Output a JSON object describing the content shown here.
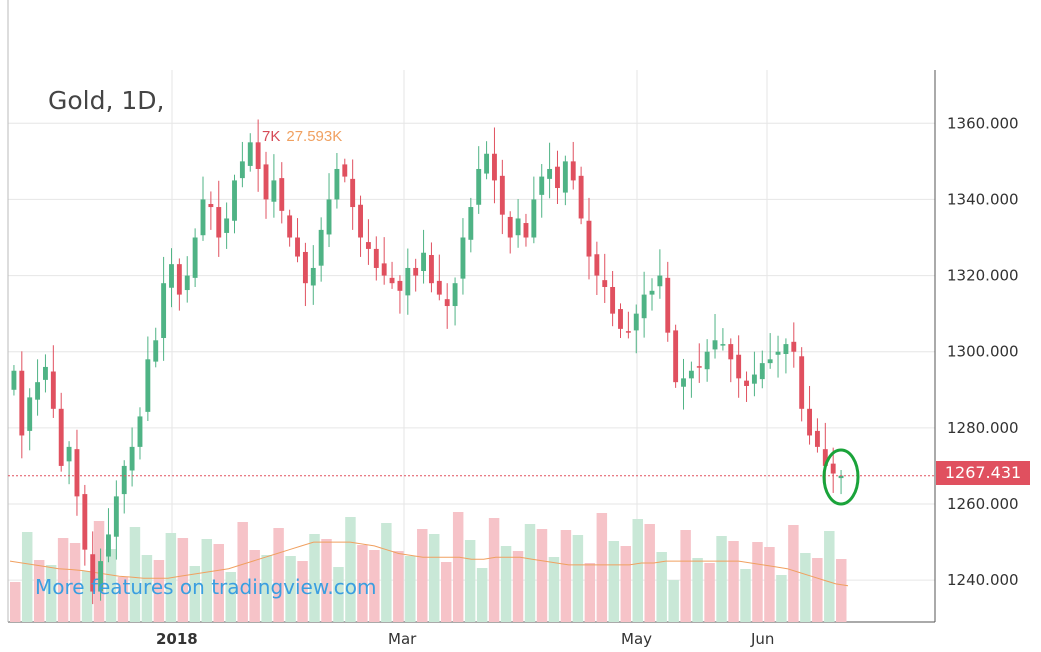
{
  "header": {
    "title": "Gold, 1D,",
    "volume_label_a": "7K",
    "volume_label_b": "27.593K"
  },
  "promo": {
    "text": "More features on tradingview.com"
  },
  "last_price": {
    "label": "1267.431",
    "value": 1267.431,
    "color": "#e0505f"
  },
  "colors": {
    "up": "#4fb385",
    "down": "#e0505f",
    "vol_up": "#c9e8d7",
    "vol_down": "#f6c3c8",
    "vol_ma": "#f0a060"
  },
  "chart_data": {
    "type": "candlestick",
    "y_ticks": [
      "1360.000",
      "1340.000",
      "1320.000",
      "1300.000",
      "1280.000",
      "1260.000",
      "1240.000"
    ],
    "y_tick_values": [
      1360,
      1340,
      1320,
      1300,
      1280,
      1260,
      1240
    ],
    "x_ticks": [
      "2018",
      "Mar",
      "May",
      "Jun"
    ],
    "ylim": [
      1229,
      1374
    ],
    "grid": true,
    "close_series": [
      1295,
      1278,
      1288,
      1292,
      1296,
      1285,
      1270,
      1275,
      1262,
      1248,
      1237,
      1245,
      1252,
      1262,
      1270,
      1275,
      1283,
      1298,
      1303,
      1318,
      1323,
      1315,
      1320,
      1330,
      1340,
      1338,
      1330,
      1335,
      1345,
      1350,
      1355,
      1348,
      1340,
      1345,
      1337,
      1330,
      1325,
      1318,
      1322,
      1332,
      1340,
      1348,
      1346,
      1338,
      1330,
      1327,
      1322,
      1320,
      1318,
      1316,
      1322,
      1320,
      1326,
      1318,
      1315,
      1312,
      1318,
      1330,
      1338,
      1348,
      1352,
      1345,
      1336,
      1330,
      1335,
      1330,
      1340,
      1346,
      1348,
      1343,
      1350,
      1345,
      1335,
      1325,
      1320,
      1317,
      1310,
      1306,
      1305,
      1310,
      1315,
      1316,
      1320,
      1305,
      1292,
      1293,
      1295,
      1296,
      1300,
      1303,
      1302,
      1298,
      1293,
      1291,
      1294,
      1297,
      1298,
      1300,
      1302,
      1300,
      1285,
      1278,
      1275,
      1270,
      1268,
      1267.431
    ],
    "volume_ma": [
      1245,
      1244.5,
      1244,
      1243.5,
      1243,
      1242.8,
      1242.5,
      1242,
      1241.5,
      1241,
      1240.8,
      1240.5,
      1240.5,
      1240.5,
      1241,
      1241.5,
      1242,
      1242.5,
      1243,
      1244,
      1245,
      1246,
      1247,
      1248,
      1249,
      1250,
      1250,
      1250,
      1250,
      1249.5,
      1249,
      1248,
      1247,
      1246.5,
      1246,
      1246,
      1246,
      1246,
      1245.5,
      1245.5,
      1246,
      1246,
      1246,
      1245.5,
      1245,
      1244.5,
      1244,
      1244,
      1244,
      1244,
      1244,
      1244,
      1244.5,
      1244.5,
      1245,
      1245,
      1245,
      1245,
      1245,
      1245,
      1245,
      1244.5,
      1244,
      1243.5,
      1243,
      1242,
      1241,
      1240,
      1239,
      1238.5
    ],
    "volume_bars_up": [
      false,
      true,
      false,
      true,
      false,
      false,
      true,
      false,
      true,
      false,
      true,
      true,
      false,
      true,
      false,
      true,
      true,
      false,
      true,
      false,
      false,
      true,
      false,
      true,
      false,
      true,
      false,
      true,
      true,
      false,
      false,
      true,
      false,
      true,
      false,
      true,
      false,
      false,
      true,
      true,
      false,
      true,
      false,
      true,
      false,
      true,
      false,
      true,
      false,
      false,
      true,
      false,
      true,
      false,
      true,
      true,
      false,
      true,
      false,
      true,
      false,
      true,
      false,
      false,
      true,
      false,
      true,
      false,
      true,
      false
    ]
  }
}
